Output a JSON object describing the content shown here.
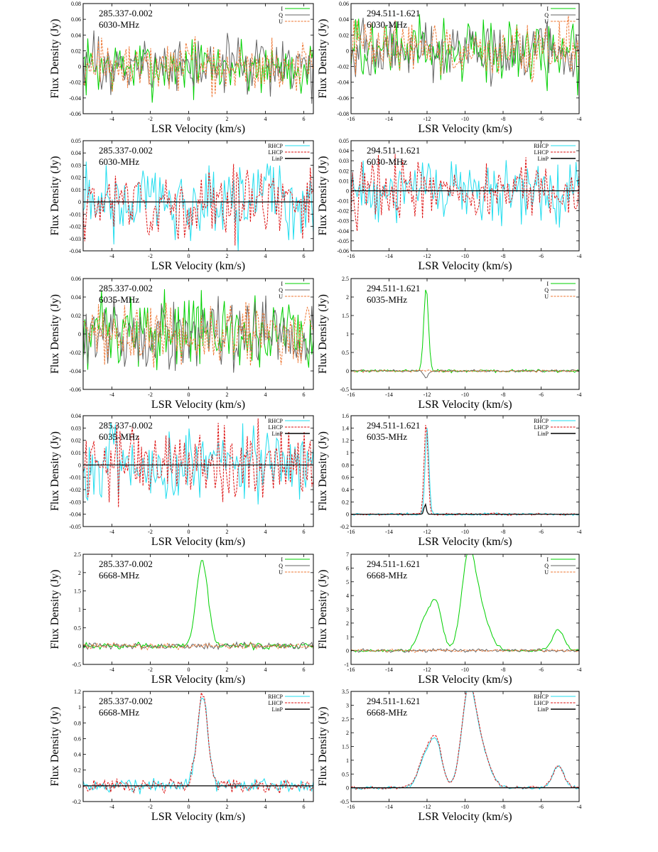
{
  "colors": {
    "I": "#00d000",
    "Q": "#666666",
    "U": "#ee7733",
    "RHCP": "#22ddee",
    "LHCP": "#dd1111",
    "LinP": "#000000"
  },
  "chart_data": [
    {
      "type": "line",
      "annotation": [
        "285.337-0.002",
        "6030-MHz"
      ],
      "xlabel": "LSR Velocity (km/s)",
      "ylabel": "Flux Density (Jy)",
      "xlim": [
        -5.5,
        6.5
      ],
      "ylim": [
        -0.06,
        0.08
      ],
      "xticks": [
        -4,
        -2,
        0,
        2,
        4,
        6
      ],
      "yticks": [
        -0.06,
        -0.04,
        -0.02,
        0,
        0.02,
        0.04,
        0.06,
        0.08
      ],
      "ytick_labels": [
        "-0.06",
        "-0.04",
        "-0.02",
        "0",
        "0.02",
        "0.04",
        "0.06",
        "0.08"
      ],
      "legend": [
        "I",
        "Q",
        "U"
      ],
      "legend_position": "top-right",
      "series": [
        {
          "name": "I",
          "noise": 0.018,
          "zero_line": false
        },
        {
          "name": "Q",
          "noise": 0.018,
          "zero_line": false
        },
        {
          "name": "U",
          "noise": 0.017,
          "zero_line": false,
          "dashed": true
        }
      ]
    },
    {
      "type": "line",
      "annotation": [
        "294.511-1.621",
        "6030-MHz"
      ],
      "xlabel": "LSR Velocity (km/s)",
      "ylabel": "Flux Density (Jy)",
      "xlim": [
        -16,
        -4
      ],
      "ylim": [
        -0.08,
        0.06
      ],
      "xticks": [
        -16,
        -14,
        -12,
        -10,
        -8,
        -6,
        -4
      ],
      "yticks": [
        -0.08,
        -0.06,
        -0.04,
        -0.02,
        0,
        0.02,
        0.04,
        0.06
      ],
      "ytick_labels": [
        "-0.08",
        "-0.06",
        "-0.04",
        "-0.02",
        "0",
        "0.02",
        "0.04",
        "0.06"
      ],
      "legend": [
        "I",
        "Q",
        "U"
      ],
      "legend_position": "top-right",
      "series": [
        {
          "name": "I",
          "noise": 0.02
        },
        {
          "name": "Q",
          "noise": 0.018
        },
        {
          "name": "U",
          "noise": 0.018,
          "dashed": true
        }
      ]
    },
    {
      "type": "line",
      "annotation": [
        "285.337-0.002",
        "6030-MHz"
      ],
      "xlabel": "LSR Velocity (km/s)",
      "ylabel": "Flux Density (Jy)",
      "xlim": [
        -5.5,
        6.5
      ],
      "ylim": [
        -0.04,
        0.05
      ],
      "xticks": [
        -4,
        -2,
        0,
        2,
        4,
        6
      ],
      "yticks": [
        -0.04,
        -0.03,
        -0.02,
        -0.01,
        0,
        0.01,
        0.02,
        0.03,
        0.04,
        0.05
      ],
      "ytick_labels": [
        "-0.04",
        "-0.03",
        "-0.02",
        "-0.01",
        "0",
        "0.01",
        "0.02",
        "0.03",
        "0.04",
        "0.05"
      ],
      "legend": [
        "RHCP",
        "LHCP",
        "LinP"
      ],
      "legend_position": "top-right",
      "series": [
        {
          "name": "RHCP",
          "noise": 0.016
        },
        {
          "name": "LHCP",
          "noise": 0.014,
          "dashed": true
        },
        {
          "name": "LinP",
          "zero_line": true
        }
      ]
    },
    {
      "type": "line",
      "annotation": [
        "294.511-1.621",
        "6030-MHz"
      ],
      "xlabel": "LSR Velocity (km/s)",
      "ylabel": "Flux Density (Jy)",
      "xlim": [
        -16,
        -4
      ],
      "ylim": [
        -0.06,
        0.05
      ],
      "xticks": [
        -16,
        -14,
        -12,
        -10,
        -8,
        -6,
        -4
      ],
      "yticks": [
        -0.06,
        -0.05,
        -0.04,
        -0.03,
        -0.02,
        -0.01,
        0,
        0.01,
        0.02,
        0.03,
        0.04,
        0.05
      ],
      "ytick_labels": [
        "-0.06",
        "-0.05",
        "-0.04",
        "-0.03",
        "-0.02",
        "-0.01",
        "0",
        "0.01",
        "0.02",
        "0.03",
        "0.04",
        "0.05"
      ],
      "legend": [
        "RHCP",
        "LHCP",
        "LinP"
      ],
      "legend_position": "top-right",
      "series": [
        {
          "name": "RHCP",
          "noise": 0.015
        },
        {
          "name": "LHCP",
          "noise": 0.015,
          "dashed": true
        },
        {
          "name": "LinP",
          "zero_line": true
        }
      ]
    },
    {
      "type": "line",
      "annotation": [
        "285.337-0.002",
        "6035-MHz"
      ],
      "xlabel": "LSR Velocity (km/s)",
      "ylabel": "Flux Density (Jy)",
      "xlim": [
        -5.5,
        6.5
      ],
      "ylim": [
        -0.06,
        0.06
      ],
      "xticks": [
        -4,
        -2,
        0,
        2,
        4,
        6
      ],
      "yticks": [
        -0.06,
        -0.04,
        -0.02,
        0,
        0.02,
        0.04,
        0.06
      ],
      "ytick_labels": [
        "-0.06",
        "-0.04",
        "-0.02",
        "0",
        "0.02",
        "0.04",
        "0.06"
      ],
      "legend": [
        "I",
        "Q",
        "U"
      ],
      "legend_position": "top-right",
      "series": [
        {
          "name": "I",
          "noise": 0.02
        },
        {
          "name": "Q",
          "noise": 0.018
        },
        {
          "name": "U",
          "noise": 0.018,
          "dashed": true
        }
      ]
    },
    {
      "type": "line",
      "annotation": [
        "294.511-1.621",
        "6035-MHz"
      ],
      "xlabel": "LSR Velocity (km/s)",
      "ylabel": "Flux Density (Jy)",
      "xlim": [
        -16,
        -4
      ],
      "ylim": [
        -0.5,
        2.5
      ],
      "xticks": [
        -16,
        -14,
        -12,
        -10,
        -8,
        -6,
        -4
      ],
      "yticks": [
        -0.5,
        0,
        0.5,
        1,
        1.5,
        2,
        2.5
      ],
      "ytick_labels": [
        "-0.5",
        "0",
        "0.5",
        "1",
        "1.5",
        "2",
        "2.5"
      ],
      "legend": [
        "I",
        "Q",
        "U"
      ],
      "legend_position": "top-right",
      "series": [
        {
          "name": "I",
          "noise": 0.02,
          "peaks": [
            {
              "x": -12.05,
              "amp": 2.3,
              "width": 0.12
            }
          ]
        },
        {
          "name": "Q",
          "noise": 0.015,
          "peaks": [
            {
              "x": -12.05,
              "amp": -0.18,
              "width": 0.12
            }
          ]
        },
        {
          "name": "U",
          "noise": 0.015,
          "dashed": true
        }
      ]
    },
    {
      "type": "line",
      "annotation": [
        "285.337-0.002",
        "6035-MHz"
      ],
      "xlabel": "LSR Velocity (km/s)",
      "ylabel": "Flux Density (Jy)",
      "xlim": [
        -5.5,
        6.5
      ],
      "ylim": [
        -0.05,
        0.04
      ],
      "xticks": [
        -4,
        -2,
        0,
        2,
        4,
        6
      ],
      "yticks": [
        -0.05,
        -0.04,
        -0.03,
        -0.02,
        -0.01,
        0,
        0.01,
        0.02,
        0.03,
        0.04
      ],
      "ytick_labels": [
        "-0.05",
        "-0.04",
        "-0.03",
        "-0.02",
        "-0.01",
        "0",
        "0.01",
        "0.02",
        "0.03",
        "0.04"
      ],
      "legend": [
        "RHCP",
        "LHCP",
        "LinP"
      ],
      "legend_position": "top-right",
      "series": [
        {
          "name": "RHCP",
          "noise": 0.015
        },
        {
          "name": "LHCP",
          "noise": 0.015,
          "dashed": true
        },
        {
          "name": "LinP",
          "zero_line": true
        }
      ]
    },
    {
      "type": "line",
      "annotation": [
        "294.511-1.621",
        "6035-MHz"
      ],
      "xlabel": "LSR Velocity (km/s)",
      "ylabel": "Flux Density (Jy)",
      "xlim": [
        -16,
        -4
      ],
      "ylim": [
        -0.2,
        1.6
      ],
      "xticks": [
        -16,
        -14,
        -12,
        -10,
        -8,
        -6,
        -4
      ],
      "yticks": [
        -0.2,
        0,
        0.2,
        0.4,
        0.6,
        0.8,
        1,
        1.2,
        1.4,
        1.6
      ],
      "ytick_labels": [
        "-0.2",
        "0",
        "0.2",
        "0.4",
        "0.6",
        "0.8",
        "1",
        "1.2",
        "1.4",
        "1.6"
      ],
      "legend": [
        "RHCP",
        "LHCP",
        "LinP"
      ],
      "legend_position": "top-right",
      "series": [
        {
          "name": "RHCP",
          "noise": 0.01,
          "peaks": [
            {
              "x": -12.0,
              "amp": 1.4,
              "width": 0.1
            }
          ]
        },
        {
          "name": "LHCP",
          "noise": 0.01,
          "dashed": true,
          "peaks": [
            {
              "x": -12.05,
              "amp": 1.5,
              "width": 0.1
            }
          ]
        },
        {
          "name": "LinP",
          "zero_line": true,
          "peaks": [
            {
              "x": -12.1,
              "amp": 0.17,
              "width": 0.06
            }
          ]
        }
      ]
    },
    {
      "type": "line",
      "annotation": [
        "285.337-0.002",
        "6668-MHz"
      ],
      "xlabel": "LSR Velocity (km/s)",
      "ylabel": "Flux Density (Jy)",
      "xlim": [
        -5.5,
        6.5
      ],
      "ylim": [
        -0.5,
        2.5
      ],
      "xticks": [
        -4,
        -2,
        0,
        2,
        4,
        6
      ],
      "yticks": [
        -0.5,
        0,
        0.5,
        1,
        1.5,
        2,
        2.5
      ],
      "ytick_labels": [
        "-0.5",
        "0",
        "0.5",
        "1",
        "1.5",
        "2",
        "2.5"
      ],
      "legend": [
        "I",
        "Q",
        "U"
      ],
      "legend_position": "top-right",
      "series": [
        {
          "name": "I",
          "noise": 0.04,
          "peaks": [
            {
              "x": 0.7,
              "amp": 2.3,
              "width": 0.3
            }
          ]
        },
        {
          "name": "Q",
          "noise": 0.05
        },
        {
          "name": "U",
          "noise": 0.04,
          "dashed": true
        }
      ]
    },
    {
      "type": "line",
      "annotation": [
        "294.511-1.621",
        "6668-MHz"
      ],
      "xlabel": "LSR Velocity (km/s)",
      "ylabel": "Flux Density (Jy)",
      "xlim": [
        -16,
        -4
      ],
      "ylim": [
        -1,
        7
      ],
      "xticks": [
        -16,
        -14,
        -12,
        -10,
        -8,
        -6,
        -4
      ],
      "yticks": [
        -1,
        0,
        1,
        2,
        3,
        4,
        5,
        6,
        7
      ],
      "ytick_labels": [
        "-1",
        "0",
        "1",
        "2",
        "3",
        "4",
        "5",
        "6",
        "7"
      ],
      "legend": [
        "I",
        "Q",
        "U"
      ],
      "legend_position": "top-right",
      "series": [
        {
          "name": "I",
          "noise": 0.05,
          "peaks": [
            {
              "x": -12.1,
              "amp": 2.2,
              "width": 0.35
            },
            {
              "x": -11.5,
              "amp": 3.1,
              "width": 0.3
            },
            {
              "x": -9.85,
              "amp": 5.5,
              "width": 0.35
            },
            {
              "x": -9.3,
              "amp": 3.2,
              "width": 0.5
            },
            {
              "x": -5.1,
              "amp": 1.55,
              "width": 0.3
            }
          ]
        },
        {
          "name": "Q",
          "noise": 0.06
        },
        {
          "name": "U",
          "noise": 0.05,
          "dashed": true
        }
      ]
    },
    {
      "type": "line",
      "annotation": [
        "285.337-0.002",
        "6668-MHz"
      ],
      "xlabel": "LSR Velocity (km/s)",
      "ylabel": "Flux Density (Jy)",
      "xlim": [
        -5.5,
        6.5
      ],
      "ylim": [
        -0.2,
        1.2
      ],
      "xticks": [
        -4,
        -2,
        0,
        2,
        4,
        6
      ],
      "yticks": [
        -0.2,
        0,
        0.2,
        0.4,
        0.6,
        0.8,
        1,
        1.2
      ],
      "ytick_labels": [
        "-0.2",
        "0",
        "0.2",
        "0.4",
        "0.6",
        "0.8",
        "1",
        "1.2"
      ],
      "legend": [
        "RHCP",
        "LHCP",
        "LinP"
      ],
      "legend_position": "top-right",
      "series": [
        {
          "name": "RHCP",
          "noise": 0.04,
          "peaks": [
            {
              "x": 0.72,
              "amp": 1.15,
              "width": 0.28
            }
          ]
        },
        {
          "name": "LHCP",
          "noise": 0.04,
          "dashed": true,
          "peaks": [
            {
              "x": 0.72,
              "amp": 1.17,
              "width": 0.28
            }
          ]
        },
        {
          "name": "LinP",
          "zero_line": true
        }
      ]
    },
    {
      "type": "line",
      "annotation": [
        "294.511-1.621",
        "6668-MHz"
      ],
      "xlabel": "LSR Velocity (km/s)",
      "ylabel": "Flux Density (Jy)",
      "xlim": [
        -16,
        -4
      ],
      "ylim": [
        -0.5,
        3.5
      ],
      "xticks": [
        -16,
        -14,
        -12,
        -10,
        -8,
        -6,
        -4
      ],
      "yticks": [
        -0.5,
        0,
        0.5,
        1,
        1.5,
        2,
        2.5,
        3,
        3.5
      ],
      "ytick_labels": [
        "-0.5",
        "0",
        "0.5",
        "1",
        "1.5",
        "2",
        "2.5",
        "3",
        "3.5"
      ],
      "legend": [
        "RHCP",
        "LHCP",
        "LinP"
      ],
      "legend_position": "top-right",
      "series": [
        {
          "name": "RHCP",
          "noise": 0.03,
          "peaks": [
            {
              "x": -12.1,
              "amp": 1.1,
              "width": 0.35
            },
            {
              "x": -11.5,
              "amp": 1.5,
              "width": 0.3
            },
            {
              "x": -9.85,
              "amp": 2.8,
              "width": 0.35
            },
            {
              "x": -9.3,
              "amp": 1.6,
              "width": 0.5
            },
            {
              "x": -5.1,
              "amp": 0.78,
              "width": 0.3
            }
          ]
        },
        {
          "name": "LHCP",
          "noise": 0.03,
          "dashed": true,
          "peaks": [
            {
              "x": -12.1,
              "amp": 1.15,
              "width": 0.35
            },
            {
              "x": -11.5,
              "amp": 1.55,
              "width": 0.3
            },
            {
              "x": -9.85,
              "amp": 2.85,
              "width": 0.35
            },
            {
              "x": -9.3,
              "amp": 1.6,
              "width": 0.5
            },
            {
              "x": -5.1,
              "amp": 0.8,
              "width": 0.3
            }
          ]
        },
        {
          "name": "LinP",
          "zero_line": true
        }
      ]
    }
  ]
}
